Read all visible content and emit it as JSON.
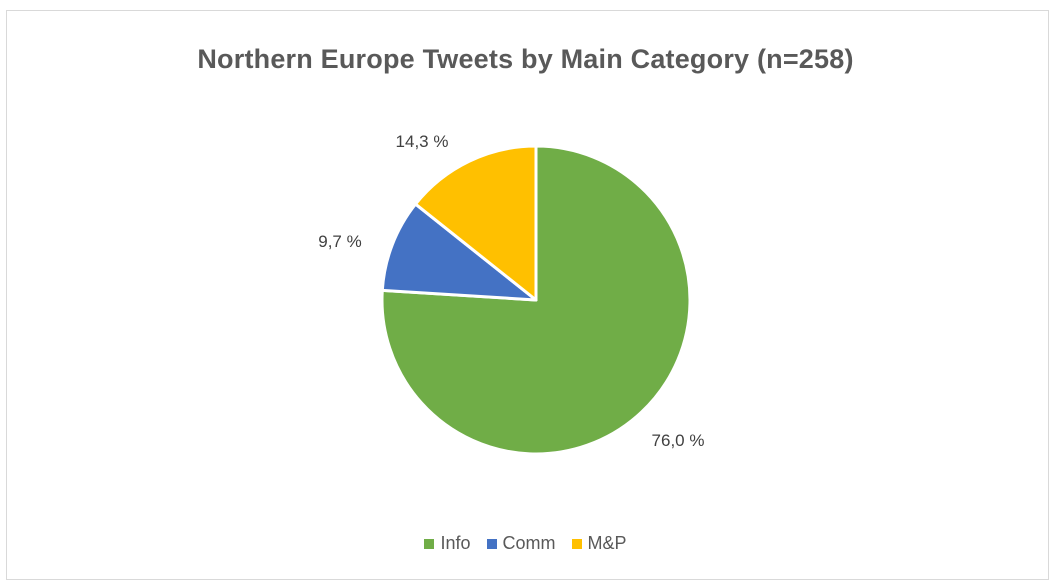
{
  "chart_data": {
    "type": "pie",
    "title": "Northern Europe Tweets by Main Category (n=258)",
    "slices": [
      {
        "name": "Info",
        "value": 76.0,
        "label": "76,0 %",
        "color": "#70ad47"
      },
      {
        "name": "Comm",
        "value": 9.7,
        "label": "9,7 %",
        "color": "#4472c4"
      },
      {
        "name": "M&P",
        "value": 14.3,
        "label": "14,3 %",
        "color": "#ffc000"
      }
    ],
    "start_angle": "12 o'clock",
    "direction": "clockwise",
    "legend_position": "bottom"
  }
}
